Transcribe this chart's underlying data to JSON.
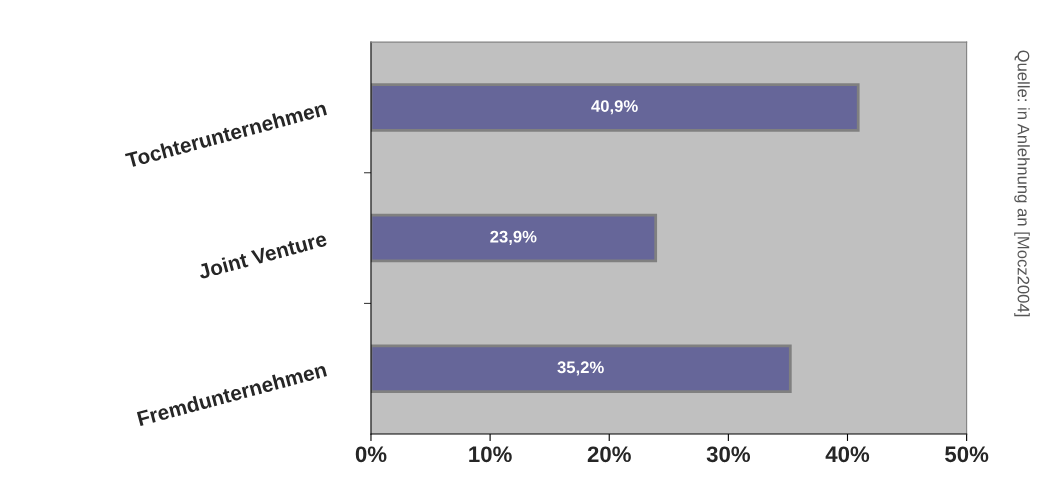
{
  "chart_data": {
    "type": "bar",
    "orientation": "horizontal",
    "categories": [
      "Tochterunternehmen",
      "Joint Venture",
      "Fremdunternehmen"
    ],
    "values": [
      40.9,
      23.9,
      35.2
    ],
    "value_labels": [
      "40,9%",
      "23,9%",
      "35,2%"
    ],
    "color": "#666699",
    "xlim": [
      0,
      50
    ],
    "xticks": [
      {
        "value": 0,
        "label": "0%"
      },
      {
        "value": 10,
        "label": "10%"
      },
      {
        "value": 20,
        "label": "20%"
      },
      {
        "value": 30,
        "label": "30%"
      },
      {
        "value": 40,
        "label": "40%"
      },
      {
        "value": 50,
        "label": "50%"
      }
    ],
    "grid": false,
    "legend": false,
    "annotations": [
      "Quelle: in Anlehnung an [Mocz2004]"
    ]
  }
}
